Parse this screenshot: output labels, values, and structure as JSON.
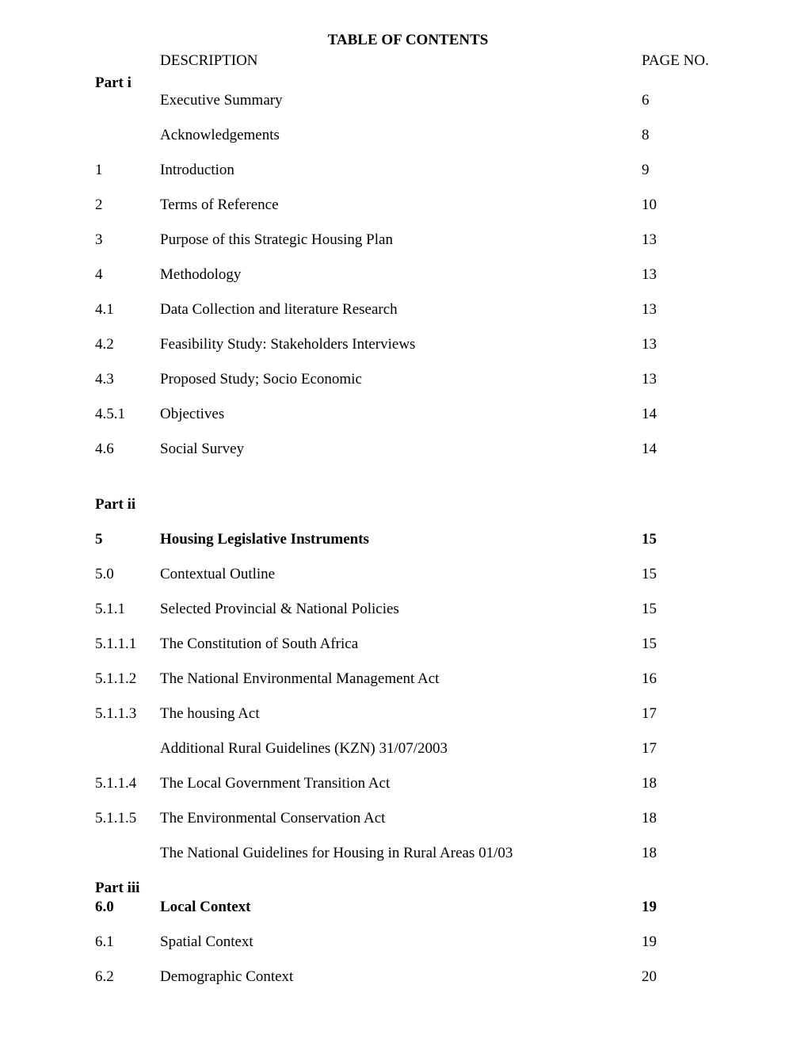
{
  "title": "TABLE OF CONTENTS",
  "headers": {
    "description": "DESCRIPTION",
    "page": "PAGE NO."
  },
  "parts": {
    "i": "Part i",
    "ii": "Part ii",
    "iii": "Part iii"
  },
  "rows": [
    {
      "num": "",
      "desc": "Executive Summary",
      "page": "6",
      "bold": false
    },
    {
      "num": "",
      "desc": "Acknowledgements",
      "page": "8",
      "bold": false
    },
    {
      "num": "1",
      "desc": "Introduction",
      "page": "9",
      "bold": false
    },
    {
      "num": "2",
      "desc": "Terms of Reference",
      "page": "10",
      "bold": false
    },
    {
      "num": "3",
      "desc": "Purpose of this  Strategic Housing Plan",
      "page": "13",
      "bold": false
    },
    {
      "num": "4",
      "desc": "Methodology",
      "page": "13",
      "bold": false
    },
    {
      "num": "4.1",
      "desc": "Data Collection and literature Research",
      "page": "13",
      "bold": false
    },
    {
      "num": "4.2",
      "desc": "Feasibility Study:  Stakeholders Interviews",
      "page": "13",
      "bold": false
    },
    {
      "num": "4.3",
      "desc": "Proposed Study; Socio Economic",
      "page": "13",
      "bold": false
    },
    {
      "num": "4.5.1",
      "desc": "Objectives",
      "page": "14",
      "bold": false
    },
    {
      "num": "4.6",
      "desc": "Social Survey",
      "page": "14",
      "bold": false
    }
  ],
  "rows2": [
    {
      "num": "5",
      "desc": "Housing Legislative Instruments",
      "page": "15",
      "bold": true
    },
    {
      "num": "5.0",
      "desc": "Contextual Outline",
      "page": "15",
      "bold": false
    },
    {
      "num": "5.1.1",
      "desc": "Selected Provincial & National Policies",
      "page": "15",
      "bold": false
    },
    {
      "num": "5.1.1.1",
      "desc": "The Constitution of South Africa",
      "page": "15",
      "bold": false
    },
    {
      "num": "5.1.1.2",
      "desc": "The National Environmental Management Act",
      "page": "16",
      "bold": false
    },
    {
      "num": "5.1.1.3",
      "desc": "The housing Act",
      "page": "17",
      "bold": false
    },
    {
      "num": "",
      "desc": "Additional Rural Guidelines (KZN) 31/07/2003",
      "page": "17",
      "bold": false
    },
    {
      "num": "5.1.1.4",
      "desc": "The Local Government Transition Act",
      "page": "18",
      "bold": false
    },
    {
      "num": "5.1.1.5",
      "desc": "The Environmental Conservation Act",
      "page": "18",
      "bold": false
    },
    {
      "num": "",
      "desc": "The National Guidelines for Housing in Rural Areas 01/03",
      "page": "18",
      "bold": false
    }
  ],
  "rows3": [
    {
      "num": "6.0",
      "desc": "Local Context",
      "page": "19",
      "bold": true
    },
    {
      "num": "6.1",
      "desc": "Spatial Context",
      "page": "19",
      "bold": false
    },
    {
      "num": "6.2",
      "desc": "Demographic Context",
      "page": "20",
      "bold": false
    }
  ]
}
